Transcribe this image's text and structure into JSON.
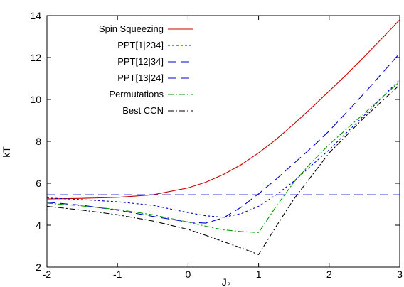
{
  "chart_data": {
    "type": "line",
    "title": "",
    "xlabel": "J₂",
    "ylabel": "kT",
    "xlim": [
      -2,
      3
    ],
    "ylim": [
      2,
      14
    ],
    "xticks": [
      "-2",
      "-1",
      "0",
      "1",
      "2",
      "3"
    ],
    "yticks": [
      "2",
      "4",
      "6",
      "8",
      "10",
      "12",
      "14"
    ],
    "grid": false,
    "legend_position": "top-left",
    "series": [
      {
        "name": "Spin Squeezing",
        "color": "#cc0000",
        "dash": "solid",
        "x": [
          -2,
          -1.5,
          -1,
          -0.5,
          0,
          0.25,
          0.5,
          0.75,
          1,
          1.25,
          1.5,
          1.75,
          2,
          2.25,
          2.5,
          2.75,
          3
        ],
        "y": [
          5.25,
          5.28,
          5.33,
          5.45,
          5.78,
          6.05,
          6.42,
          6.88,
          7.45,
          8.1,
          8.83,
          9.6,
          10.4,
          11.2,
          12.05,
          12.92,
          13.8
        ]
      },
      {
        "name": "PPT[1|234]",
        "color": "#0000cc",
        "dash": "short",
        "x": [
          -2,
          -1.5,
          -1,
          -0.5,
          0,
          0.25,
          0.5,
          0.75,
          1,
          1.25,
          1.5,
          1.75,
          2,
          2.5,
          3
        ],
        "y": [
          5.3,
          5.22,
          5.12,
          4.95,
          4.6,
          4.45,
          4.38,
          4.55,
          4.9,
          5.45,
          6.1,
          6.85,
          7.6,
          9.25,
          10.95
        ]
      },
      {
        "name": "PPT[12|34]",
        "color": "#0000cc",
        "dash": "long",
        "x": [
          -2,
          -1.5,
          -1,
          -0.5,
          0,
          0.25,
          0.5,
          0.75,
          1,
          1.25,
          1.5,
          1.75,
          2,
          2.5,
          3
        ],
        "y": [
          5.1,
          4.95,
          4.72,
          4.42,
          4.15,
          4.1,
          4.35,
          4.85,
          5.5,
          6.2,
          6.95,
          7.7,
          8.5,
          10.3,
          12.2
        ]
      },
      {
        "name": "PPT[13|24]",
        "color": "#0000cc",
        "dash": "long",
        "x": [
          -2,
          3
        ],
        "y": [
          5.45,
          5.45
        ]
      },
      {
        "name": "Permutations",
        "color": "#009900",
        "dash": "dashdot",
        "x": [
          -2,
          -1.5,
          -1,
          -0.5,
          0,
          0.25,
          0.5,
          0.75,
          1,
          1.25,
          1.5,
          1.75,
          2,
          2.5,
          3
        ],
        "y": [
          5.05,
          4.92,
          4.75,
          4.5,
          4.15,
          3.95,
          3.78,
          3.7,
          3.65,
          4.9,
          6.05,
          7.0,
          7.85,
          9.35,
          10.85
        ]
      },
      {
        "name": "Best CCN",
        "color": "#000000",
        "dash": "dashdot",
        "x": [
          -2,
          -1.5,
          -1,
          -0.5,
          0,
          0.25,
          0.5,
          0.75,
          1,
          1.25,
          1.5,
          1.75,
          2,
          2.5,
          3
        ],
        "y": [
          4.9,
          4.72,
          4.5,
          4.2,
          3.8,
          3.52,
          3.22,
          2.92,
          2.6,
          3.95,
          5.25,
          6.35,
          7.45,
          9.15,
          10.7
        ]
      }
    ]
  }
}
